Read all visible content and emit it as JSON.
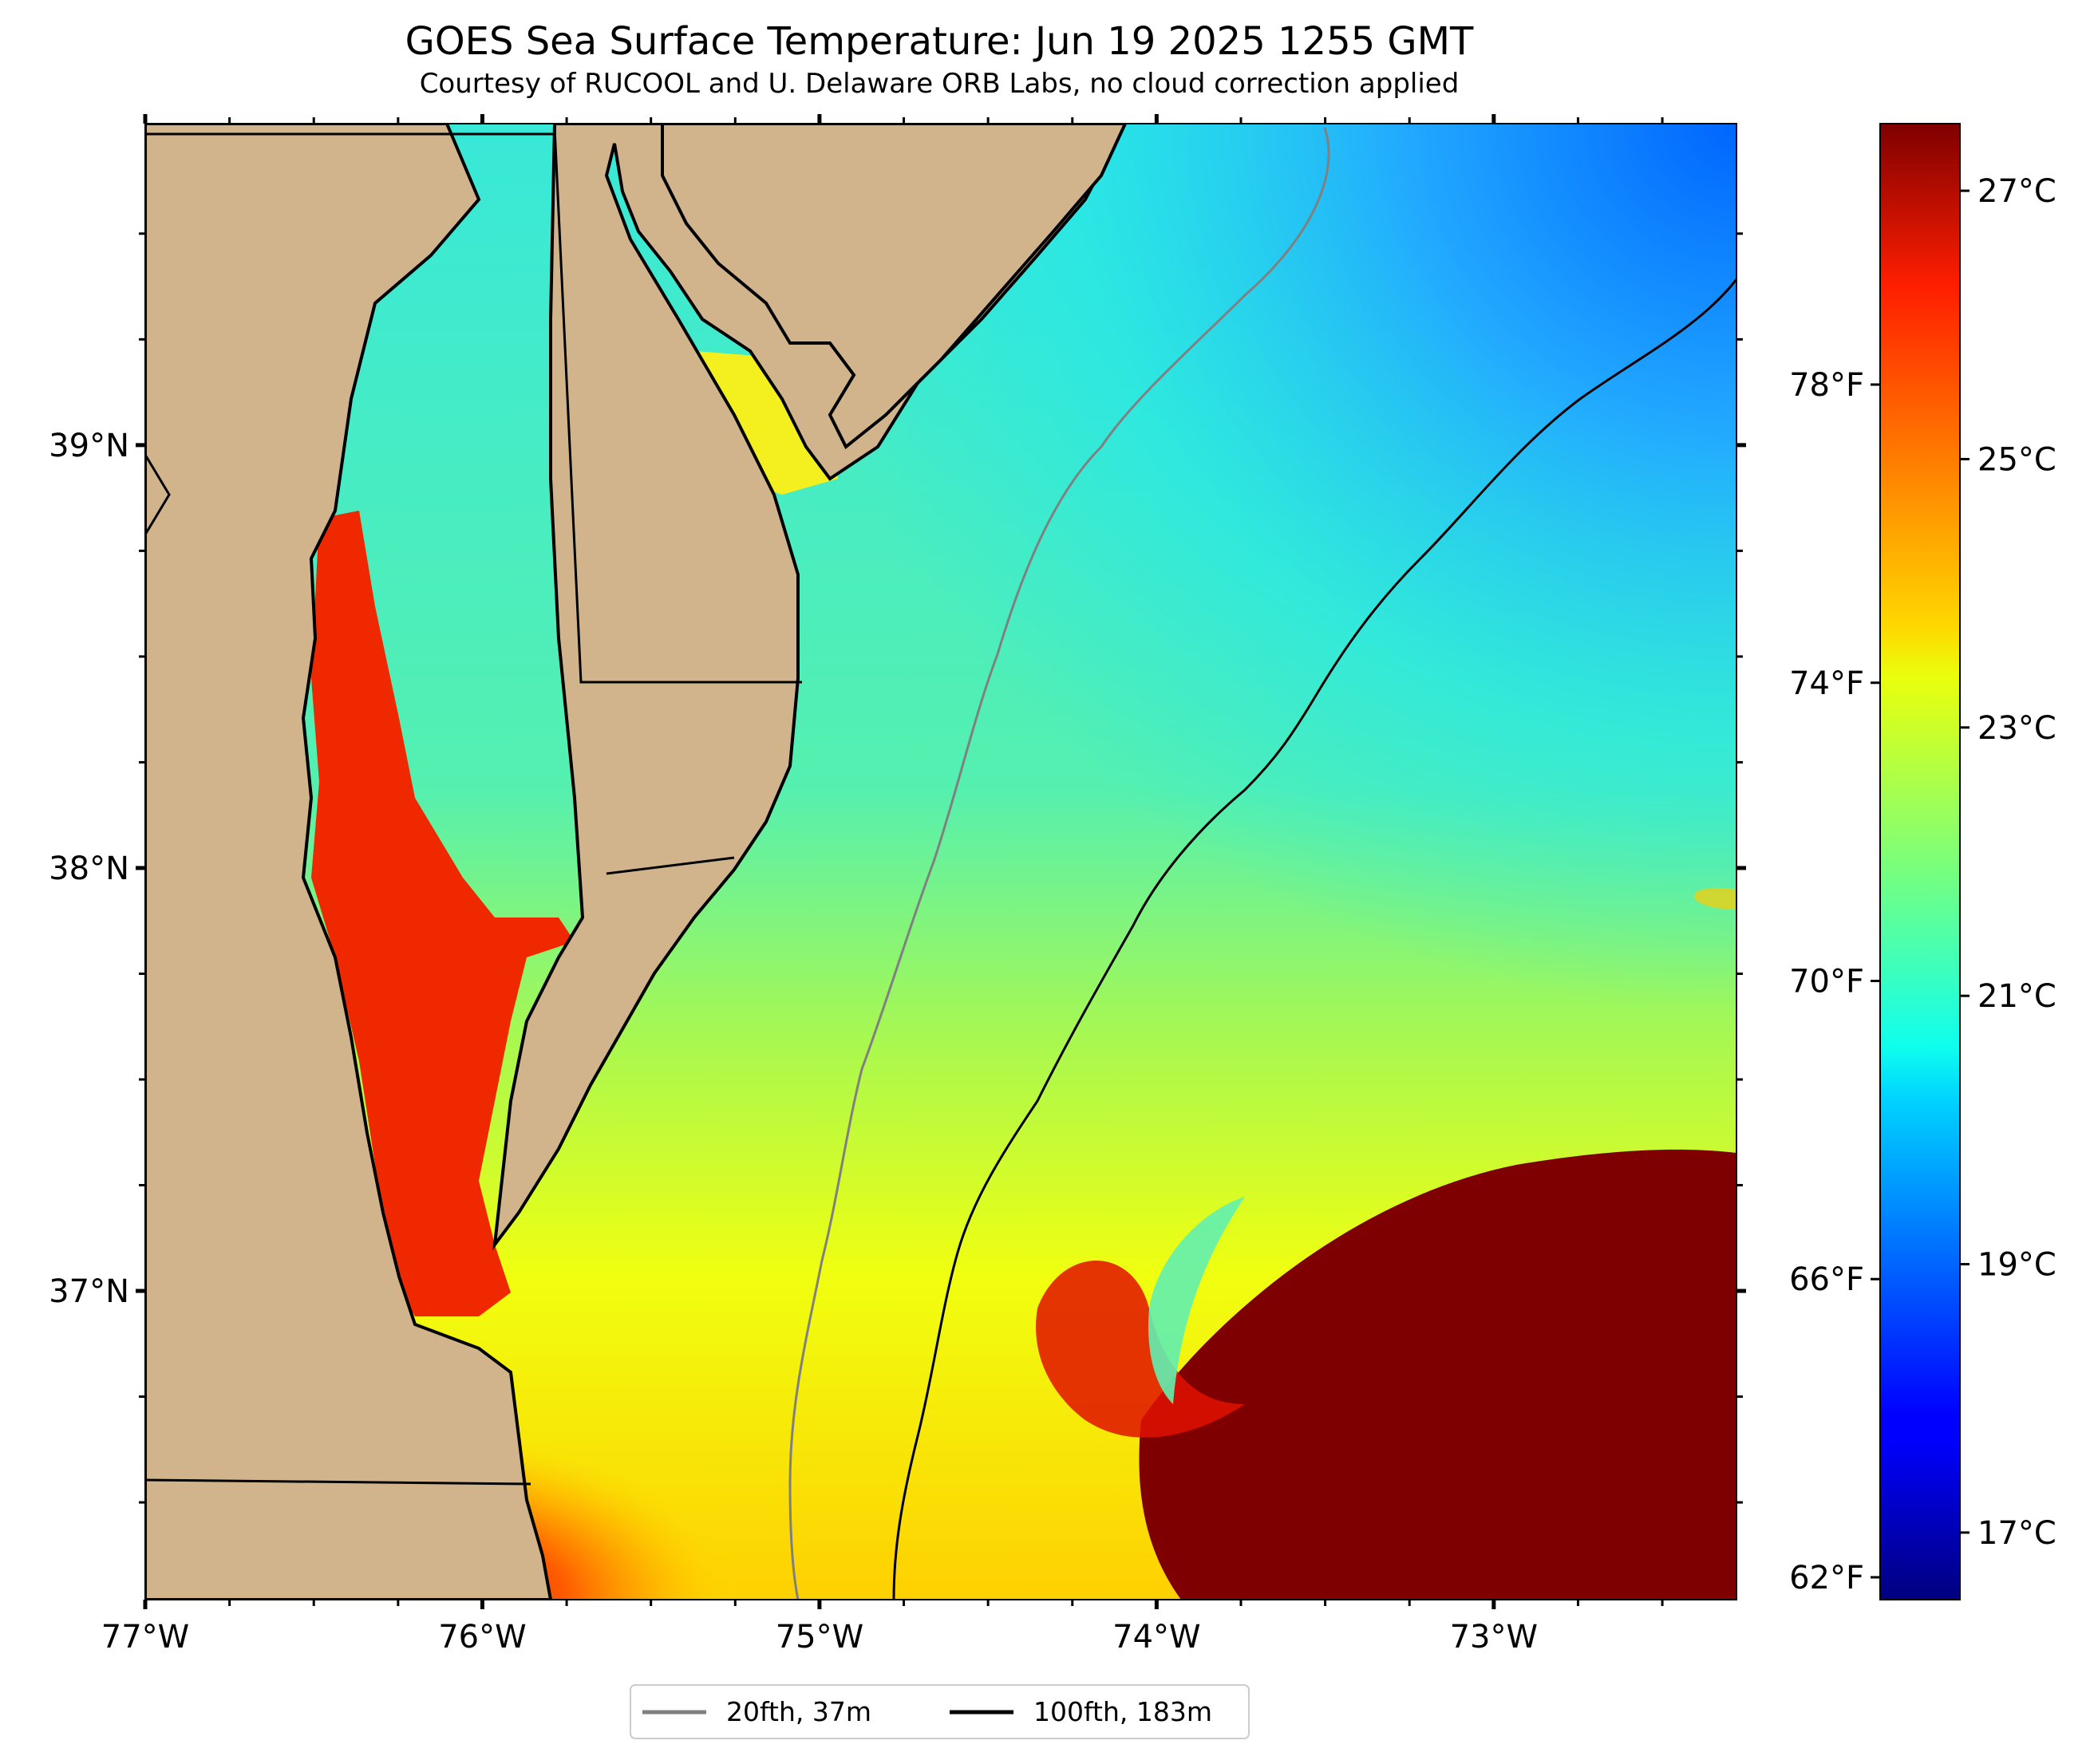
{
  "title": "GOES Sea Surface Temperature: Jun 19 2025 1255 GMT",
  "subtitle": "Courtesy of RUCOOL and U. Delaware ORB Labs, no cloud correction applied",
  "x_ticks": [
    "77°W",
    "76°W",
    "75°W",
    "74°W",
    "73°W"
  ],
  "y_ticks": [
    "39°N",
    "38°N",
    "37°N"
  ],
  "colorbar": {
    "celsius_ticks": [
      "27°C",
      "25°C",
      "23°C",
      "21°C",
      "19°C",
      "17°C"
    ],
    "fahrenheit_ticks": [
      "78°F",
      "74°F",
      "70°F",
      "66°F",
      "62°F"
    ],
    "colormap": "jet",
    "range_c": [
      16.5,
      27.5
    ]
  },
  "legend": {
    "items": [
      {
        "label": "20fth, 37m",
        "color": "#808080"
      },
      {
        "label": "100fth, 183m",
        "color": "#000000"
      }
    ]
  },
  "colors": {
    "land": "#d2b48c",
    "coast": "#000000",
    "isobath_20fth": "#808080",
    "isobath_100fth": "#000000"
  }
}
